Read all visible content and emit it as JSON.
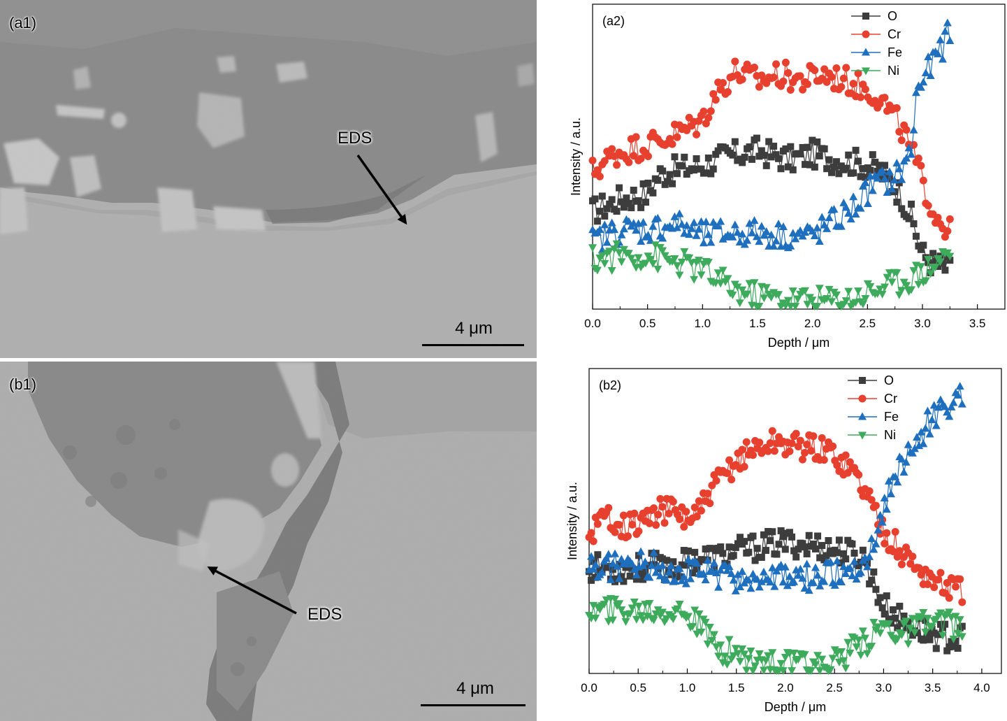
{
  "sem": {
    "a1": {
      "label": "(a1)",
      "eds_label": "EDS",
      "scale_label": "4 μm"
    },
    "b1": {
      "label": "(b1)",
      "eds_label": "EDS",
      "scale_label": "4 μm"
    }
  },
  "chart_data": [
    {
      "type": "line",
      "panel_label": "(a2)",
      "xlabel": "Depth / μm",
      "ylabel": "Intensity / a.u.",
      "xlim": [
        0,
        3.75
      ],
      "ylim": [
        0,
        100
      ],
      "xticks": [
        0.0,
        0.5,
        1.0,
        1.5,
        2.0,
        2.5,
        3.0,
        3.5
      ],
      "xtick_labels": [
        "0.0",
        "0.5",
        "1.0",
        "1.5",
        "2.0",
        "2.5",
        "3.0",
        "3.5"
      ],
      "yticks_visible": false,
      "legend_position": "top-right",
      "series": [
        {
          "name": "O",
          "color": "#3d3d3d",
          "marker": "square",
          "x": [
            0.0,
            0.25,
            0.5,
            0.6,
            0.8,
            1.0,
            1.2,
            1.5,
            1.8,
            2.0,
            2.2,
            2.4,
            2.6,
            2.8,
            2.9,
            3.0,
            3.1,
            3.25
          ],
          "y": [
            32,
            36,
            38,
            44,
            46,
            47,
            50,
            52,
            49,
            51,
            49,
            48,
            46,
            38,
            30,
            18,
            15,
            13
          ]
        },
        {
          "name": "Cr",
          "color": "#e8402f",
          "marker": "circle",
          "x": [
            0.0,
            0.2,
            0.4,
            0.6,
            0.8,
            1.0,
            1.1,
            1.3,
            1.5,
            1.7,
            1.9,
            2.1,
            2.3,
            2.5,
            2.6,
            2.8,
            2.9,
            3.0,
            3.1,
            3.25
          ],
          "y": [
            45,
            51,
            53,
            55,
            58,
            62,
            70,
            78,
            75,
            77,
            75,
            77,
            75,
            72,
            70,
            60,
            52,
            42,
            32,
            25
          ]
        },
        {
          "name": "Fe",
          "color": "#1f6fbf",
          "marker": "triangle-up",
          "x": [
            0.0,
            0.25,
            0.5,
            0.75,
            1.0,
            1.25,
            1.5,
            1.75,
            2.0,
            2.25,
            2.4,
            2.55,
            2.7,
            2.8,
            2.9,
            2.95,
            3.05,
            3.15,
            3.25
          ],
          "y": [
            22,
            26,
            26,
            28,
            24,
            25,
            25,
            24,
            24,
            30,
            34,
            41,
            42,
            45,
            52,
            72,
            78,
            84,
            91
          ]
        },
        {
          "name": "Ni",
          "color": "#3daa5c",
          "marker": "triangle-down",
          "x": [
            0.0,
            0.3,
            0.6,
            0.8,
            1.0,
            1.2,
            1.4,
            1.6,
            1.8,
            2.0,
            2.2,
            2.4,
            2.6,
            2.8,
            3.0,
            3.1,
            3.25
          ],
          "y": [
            16,
            18,
            17,
            15,
            13,
            8,
            5,
            4,
            3,
            3,
            3,
            4,
            7,
            9,
            12,
            15,
            19
          ]
        }
      ]
    },
    {
      "type": "line",
      "panel_label": "(b2)",
      "xlabel": "Depth / μm",
      "ylabel": "Intensity / a.u.",
      "xlim": [
        0,
        4.2
      ],
      "ylim": [
        0,
        100
      ],
      "xticks": [
        0.0,
        0.5,
        1.0,
        1.5,
        2.0,
        2.5,
        3.0,
        3.5,
        4.0
      ],
      "xtick_labels": [
        "0.0",
        "0.5",
        "1.0",
        "1.5",
        "2.0",
        "2.5",
        "3.0",
        "3.5",
        "4.0"
      ],
      "yticks_visible": false,
      "legend_position": "top-right",
      "series": [
        {
          "name": "O",
          "color": "#3d3d3d",
          "marker": "square",
          "x": [
            0.0,
            0.3,
            0.6,
            0.9,
            1.1,
            1.3,
            1.5,
            1.8,
            2.0,
            2.3,
            2.6,
            2.8,
            2.9,
            3.0,
            3.2,
            3.4,
            3.6,
            3.8
          ],
          "y": [
            35,
            34,
            35,
            35,
            38,
            38,
            40,
            42,
            43,
            42,
            40,
            38,
            30,
            22,
            17,
            14,
            12,
            11
          ]
        },
        {
          "name": "Cr",
          "color": "#e8402f",
          "marker": "circle",
          "x": [
            0.0,
            0.2,
            0.4,
            0.6,
            0.8,
            1.0,
            1.1,
            1.3,
            1.5,
            1.7,
            1.9,
            2.1,
            2.3,
            2.5,
            2.7,
            2.85,
            2.95,
            3.05,
            3.2,
            3.4,
            3.6,
            3.8
          ],
          "y": [
            46,
            52,
            48,
            51,
            54,
            51,
            52,
            62,
            70,
            74,
            76,
            75,
            74,
            72,
            66,
            58,
            50,
            45,
            39,
            33,
            29,
            27
          ]
        },
        {
          "name": "Fe",
          "color": "#1f6fbf",
          "marker": "triangle-up",
          "x": [
            0.0,
            0.3,
            0.6,
            0.9,
            1.2,
            1.5,
            1.8,
            2.1,
            2.4,
            2.7,
            2.85,
            2.95,
            3.05,
            3.15,
            3.3,
            3.45,
            3.6,
            3.8
          ],
          "y": [
            35,
            35,
            36,
            34,
            33,
            31,
            31,
            31,
            32,
            34,
            38,
            48,
            60,
            66,
            74,
            82,
            87,
            91
          ]
        },
        {
          "name": "Ni",
          "color": "#3daa5c",
          "marker": "triangle-down",
          "x": [
            0.0,
            0.4,
            0.8,
            1.0,
            1.1,
            1.3,
            1.5,
            1.8,
            2.0,
            2.2,
            2.4,
            2.6,
            2.8,
            3.0,
            3.2,
            3.4,
            3.6,
            3.8
          ],
          "y": [
            20,
            21,
            21,
            20,
            16,
            9,
            6,
            4,
            3,
            2,
            3,
            6,
            10,
            16,
            13,
            16,
            17,
            14
          ]
        }
      ]
    }
  ]
}
